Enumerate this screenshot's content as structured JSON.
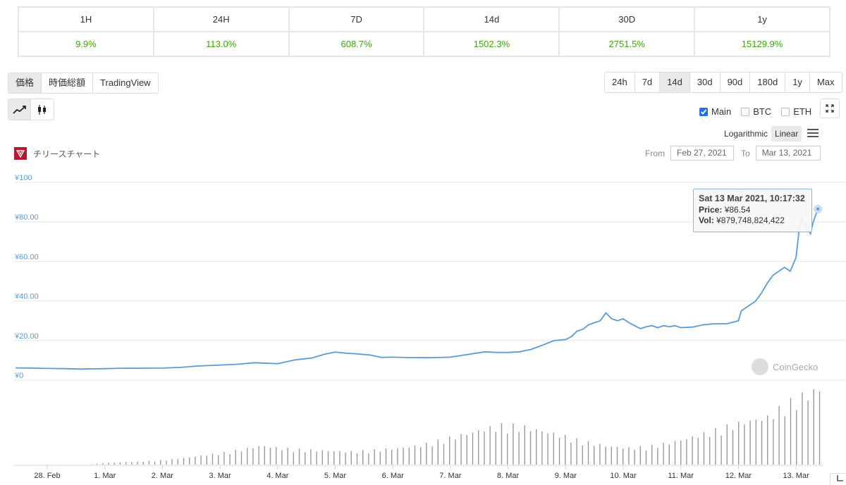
{
  "performance": {
    "headers": [
      "1H",
      "24H",
      "7D",
      "14d",
      "30D",
      "1y"
    ],
    "values": [
      "9.9%",
      "113.0%",
      "608.7%",
      "1502.3%",
      "2751.5%",
      "15129.9%"
    ],
    "positive_color": "#3ba800"
  },
  "type_tabs": [
    "価格",
    "時価総額",
    "TradingView"
  ],
  "type_active": "価格",
  "range_tabs": [
    "24h",
    "7d",
    "14d",
    "30d",
    "90d",
    "180d",
    "1y",
    "Max"
  ],
  "range_active": "14d",
  "chart_type_icons": [
    "line-chart-icon",
    "candlestick-icon"
  ],
  "legend": {
    "main": "Main",
    "btc": "BTC",
    "eth": "ETH"
  },
  "scale": {
    "log": "Logarithmic",
    "linear": "Linear"
  },
  "chart_title": "チリースチャート",
  "date_range": {
    "from_label": "From",
    "from": "Feb 27, 2021",
    "to_label": "To",
    "to": "Mar 13, 2021"
  },
  "tooltip": {
    "date": "Sat 13 Mar 2021, 10:17:32",
    "price_label": "Price:",
    "price": "¥86.54",
    "vol_label": "Vol:",
    "vol": "¥879,748,824,422"
  },
  "watermark": "CoinGecko",
  "corner_icon": "reset-icon",
  "accent_color": "#5b9bd5",
  "chart_data": {
    "type": "line",
    "ylim": [
      0,
      100
    ],
    "ytick_labels": [
      "¥0",
      "¥20.00",
      "¥40.00",
      "¥60.00",
      "¥80.00",
      "¥100"
    ],
    "ytick_values": [
      0,
      20,
      40,
      60,
      80,
      100
    ],
    "xtick_labels": [
      "28. Feb",
      "1. Mar",
      "2. Mar",
      "3. Mar",
      "4. Mar",
      "5. Mar",
      "6. Mar",
      "7. Mar",
      "8. Mar",
      "9. Mar",
      "10. Mar",
      "11. Mar",
      "12. Mar",
      "13. Mar"
    ],
    "x": [
      -0.55,
      -0.3,
      0,
      0.3,
      0.6,
      1.0,
      1.3,
      1.6,
      2.0,
      2.3,
      2.6,
      3.0,
      3.3,
      3.6,
      4.0,
      4.3,
      4.6,
      4.8,
      5.0,
      5.2,
      5.4,
      5.6,
      5.8,
      6.0,
      6.3,
      6.6,
      7.0,
      7.2,
      7.4,
      7.6,
      7.8,
      8.0,
      8.2,
      8.4,
      8.6,
      8.8,
      9.0,
      9.1,
      9.2,
      9.3,
      9.4,
      9.5,
      9.6,
      9.7,
      9.8,
      9.9,
      10.0,
      10.1,
      10.2,
      10.3,
      10.4,
      10.5,
      10.6,
      10.7,
      10.8,
      10.9,
      11.0,
      11.2,
      11.4,
      11.6,
      11.8,
      12.0,
      12.05,
      12.1,
      12.2,
      12.3,
      12.4,
      12.5,
      12.6,
      12.7,
      12.8,
      12.9,
      13.0,
      13.05,
      13.1,
      13.15,
      13.2,
      13.25,
      13.3,
      13.38
    ],
    "values": [
      6.2,
      6.1,
      5.9,
      5.8,
      5.6,
      5.8,
      6.0,
      6.0,
      6.1,
      6.4,
      7.1,
      7.6,
      8.0,
      8.8,
      8.3,
      10.2,
      11.2,
      13.0,
      14.2,
      13.6,
      13.2,
      12.7,
      11.5,
      11.6,
      11.4,
      11.3,
      11.6,
      12.5,
      13.4,
      14.3,
      14.0,
      14.0,
      14.3,
      15.5,
      17.7,
      20.0,
      20.5,
      22.0,
      24.8,
      25.7,
      28.0,
      29.0,
      30.0,
      34.0,
      31.0,
      30.0,
      31.0,
      29.0,
      27.5,
      26.0,
      27.0,
      27.5,
      26.5,
      27.5,
      27.0,
      27.5,
      26.5,
      26.8,
      28.0,
      28.5,
      28.5,
      30.0,
      35.0,
      36.0,
      38.0,
      40.0,
      44.0,
      49.0,
      53.0,
      55.0,
      57.0,
      55.0,
      62.0,
      75.0,
      82.0,
      78.0,
      77.0,
      74.0,
      80.0,
      86.54
    ],
    "volume_relative": [
      0,
      0,
      0,
      0,
      0,
      0.02,
      0.03,
      0.04,
      0.05,
      0.07,
      0.1,
      0.13,
      0.16,
      0.2,
      0.25,
      0.22,
      0.2,
      0.19,
      0.18,
      0.17,
      0.18,
      0.2,
      0.22,
      0.25,
      0.3,
      0.36,
      0.42,
      0.48,
      0.52,
      0.5,
      0.45,
      0.4,
      0.33,
      0.28,
      0.24,
      0.22,
      0.23,
      0.27,
      0.32,
      0.38,
      0.45,
      0.52,
      0.58,
      0.62,
      0.78,
      0.9,
      1.0
    ],
    "xlim": [
      -0.55,
      13.45
    ]
  }
}
